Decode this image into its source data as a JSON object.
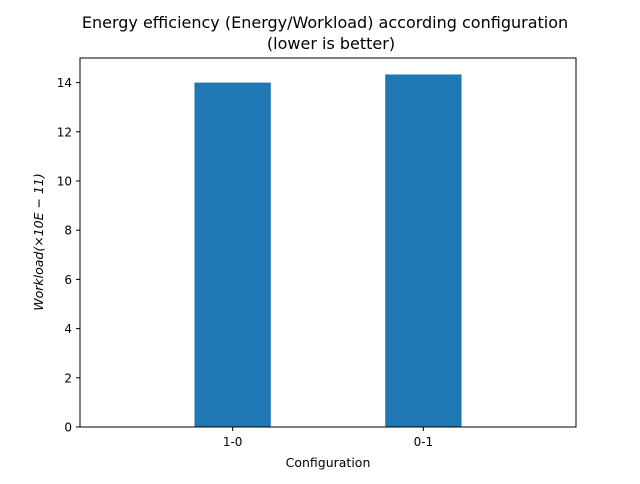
{
  "chart_data": {
    "type": "bar",
    "title_line1": "Energy efficiency (Energy/Workload) according configuration",
    "title_line2": "(lower is better)",
    "xlabel": "Configuration",
    "ylabel": "Workload(×10E − 11)",
    "categories": [
      "1-0",
      "0-1"
    ],
    "values": [
      14.0,
      14.33
    ],
    "ylim": [
      0,
      15
    ],
    "yticks": [
      0,
      2,
      4,
      6,
      8,
      10,
      12,
      14
    ],
    "grid": false,
    "bar_color": "#1f77b4"
  }
}
